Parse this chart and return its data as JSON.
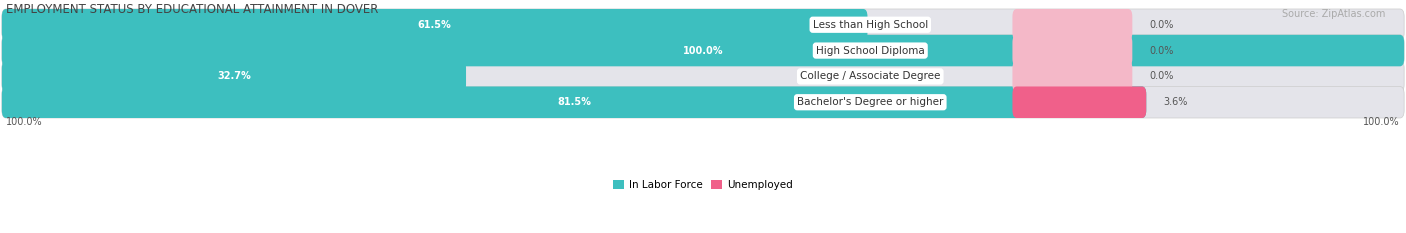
{
  "title": "EMPLOYMENT STATUS BY EDUCATIONAL ATTAINMENT IN DOVER",
  "source": "Source: ZipAtlas.com",
  "categories": [
    "Less than High School",
    "High School Diploma",
    "College / Associate Degree",
    "Bachelor's Degree or higher"
  ],
  "labor_force": [
    61.5,
    100.0,
    32.7,
    81.5
  ],
  "unemployed": [
    0.0,
    0.0,
    0.0,
    3.6
  ],
  "x_left_label": "100.0%",
  "x_right_label": "100.0%",
  "color_labor": "#3dbfbf",
  "color_unemployed_low": "#f4b8c8",
  "color_unemployed_high": "#f0608a",
  "color_bar_bg": "#e4e4ea",
  "bar_height": 0.62,
  "figsize": [
    14.06,
    2.33
  ],
  "dpi": 100,
  "title_fontsize": 8.5,
  "source_fontsize": 7,
  "bar_label_fontsize": 7,
  "cat_label_fontsize": 7.5,
  "legend_fontsize": 7.5
}
